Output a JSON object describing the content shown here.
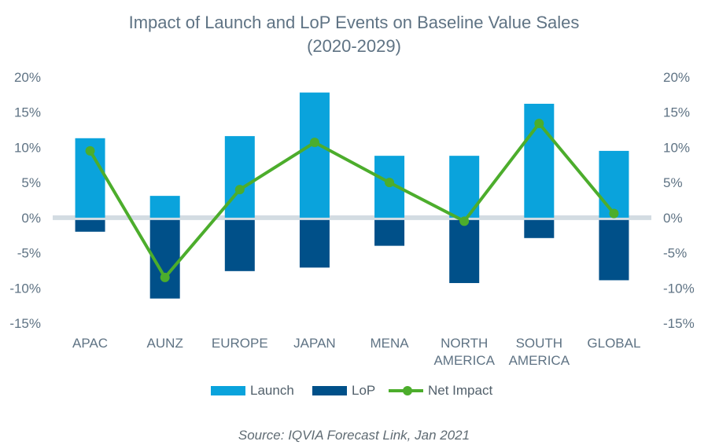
{
  "title": [
    "Impact of Launch and LoP Events on Baseline Value Sales",
    "(2020-2029)"
  ],
  "source": "Source: IQVIA Forecast Link, Jan 2021",
  "colors": {
    "launch": "#0aa3dc",
    "lop": "#005089",
    "net_impact": "#4cad2c",
    "zero_line": "#d3dce2",
    "axis_text": "#5f7384"
  },
  "chart_data": {
    "type": "bar",
    "categories": [
      "APAC",
      "AUNZ",
      "EUROPE",
      "JAPAN",
      "MENA",
      "NORTH AMERICA",
      "SOUTH AMERICA",
      "GLOBAL"
    ],
    "category_labels": [
      [
        "APAC"
      ],
      [
        "AUNZ"
      ],
      [
        "EUROPE"
      ],
      [
        "JAPAN"
      ],
      [
        "MENA"
      ],
      [
        "NORTH",
        "AMERICA"
      ],
      [
        "SOUTH",
        "AMERICA"
      ],
      [
        "GLOBAL"
      ]
    ],
    "series": [
      {
        "name": "Launch",
        "type": "bar",
        "color": "#0aa3dc",
        "values": [
          11.3,
          3.1,
          11.6,
          17.8,
          8.8,
          8.8,
          16.2,
          9.5
        ]
      },
      {
        "name": "LoP",
        "type": "bar",
        "color": "#005089",
        "values": [
          -2.0,
          -11.5,
          -7.6,
          -7.1,
          -4.0,
          -9.3,
          -2.9,
          -8.9
        ]
      },
      {
        "name": "Net Impact",
        "type": "line",
        "color": "#4cad2c",
        "values": [
          9.5,
          -8.5,
          4.0,
          10.7,
          5.0,
          -0.5,
          13.4,
          0.6
        ]
      }
    ],
    "ylim": [
      -15,
      20
    ],
    "y_ticks": [
      "20%",
      "15%",
      "10%",
      "5%",
      "0%",
      "-5%",
      "-10%",
      "-15%"
    ],
    "y_tick_values": [
      20,
      15,
      10,
      5,
      0,
      -5,
      -10,
      -15
    ],
    "right_axis": true,
    "grid": false,
    "legend_position": "bottom"
  }
}
